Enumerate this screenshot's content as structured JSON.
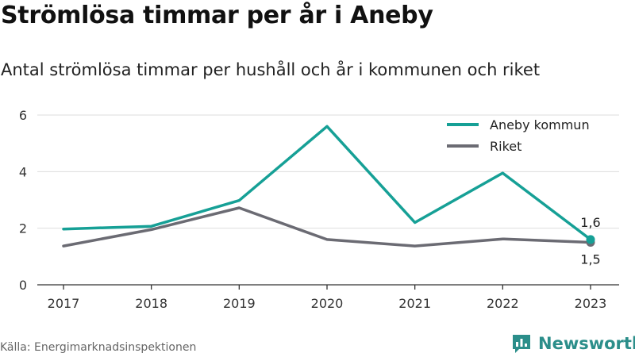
{
  "title": "Strömlösa timmar per år i Aneby",
  "subtitle": "Antal strömlösa timmar per hushåll och år i kommunen och riket",
  "source": "Källa: Energimarknadsinspektionen",
  "brand": {
    "name": "Newsworthy",
    "icon": "newsworthy-logo-icon",
    "color": "#2b8e8a"
  },
  "colors": {
    "aneby": "#16a096",
    "riket": "#6b6b73",
    "grid": "#dddddd",
    "axis": "#333333"
  },
  "chart_data": {
    "type": "line",
    "title": "Strömlösa timmar per år i Aneby",
    "subtitle": "Antal strömlösa timmar per hushåll och år i kommunen och riket",
    "x": [
      "2017",
      "2018",
      "2019",
      "2020",
      "2021",
      "2022",
      "2023"
    ],
    "ylim": [
      0,
      6
    ],
    "yticks": [
      0,
      2,
      4,
      6
    ],
    "grid": true,
    "legend_position": "top-right",
    "series": [
      {
        "name": "Aneby kommun",
        "color": "#16a096",
        "values": [
          1.97,
          2.07,
          2.98,
          5.6,
          2.2,
          3.95,
          1.6
        ]
      },
      {
        "name": "Riket",
        "color": "#6b6b73",
        "values": [
          1.37,
          1.95,
          2.72,
          1.6,
          1.37,
          1.62,
          1.5
        ]
      }
    ],
    "annotations": [
      {
        "series": "Aneby kommun",
        "x": "2023",
        "text": "1,6"
      },
      {
        "series": "Riket",
        "x": "2023",
        "text": "1,5"
      }
    ]
  }
}
